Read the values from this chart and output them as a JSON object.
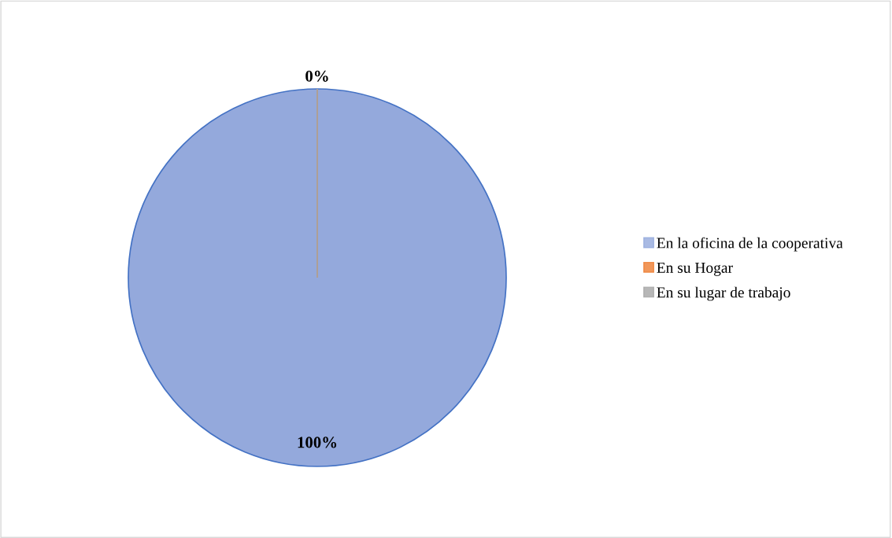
{
  "chart_data": {
    "type": "pie",
    "categories": [
      "En la oficina de la cooperativa",
      "En su Hogar",
      "En su lugar de trabajo"
    ],
    "values": [
      100,
      0,
      0
    ],
    "colors": [
      "#94a9dc",
      "#ed7d31",
      "#a5a5a5"
    ],
    "value_labels": [
      "100%",
      "0%",
      null
    ],
    "legend": "right"
  }
}
